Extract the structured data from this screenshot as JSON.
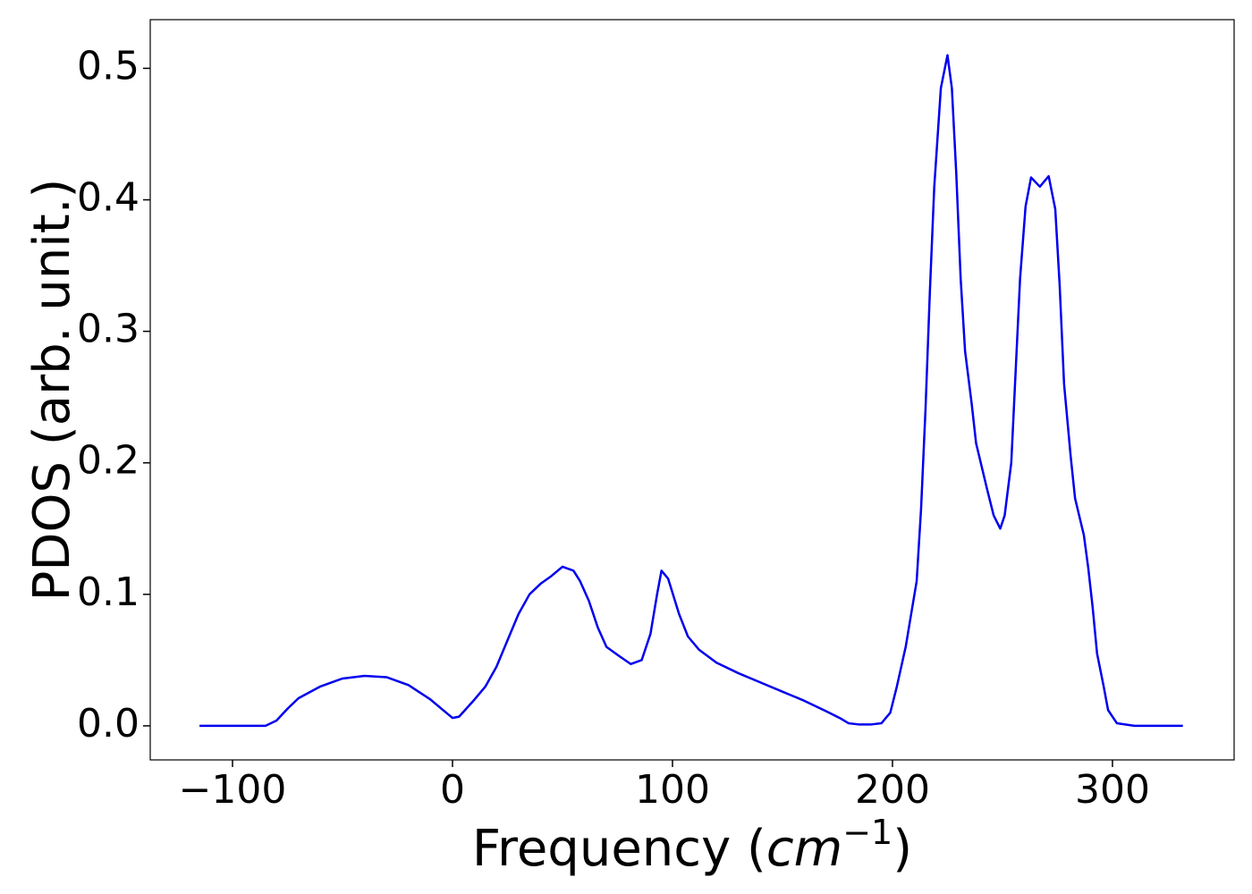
{
  "chart_data": {
    "type": "line",
    "y_label": "PDOS (arb. unit.)",
    "x_label_parts": [
      "Frequency (",
      "cm",
      "−1",
      ")"
    ],
    "x": [
      -115,
      -100,
      -85,
      -80,
      -75,
      -70,
      -60,
      -50,
      -40,
      -30,
      -20,
      -10,
      -5,
      0,
      3,
      10,
      15,
      20,
      25,
      30,
      35,
      40,
      45,
      50,
      55,
      58,
      62,
      66,
      70,
      75,
      81,
      86,
      90,
      93,
      95,
      98,
      103,
      107,
      112,
      120,
      130,
      140,
      150,
      160,
      170,
      176,
      180,
      185,
      190,
      195,
      199,
      202,
      206,
      208,
      211,
      213,
      215,
      217,
      219,
      222,
      225,
      227,
      229,
      231,
      233,
      236,
      238,
      243,
      246,
      249,
      251,
      254,
      256,
      258,
      260.5,
      263,
      267,
      271,
      274,
      276,
      278,
      281,
      283,
      287,
      289,
      291,
      293,
      296,
      298,
      302,
      310,
      332
    ],
    "series": [
      {
        "name": "PDOS",
        "color": "#0000ee",
        "values": [
          0,
          0,
          0,
          0.004,
          0.013,
          0.021,
          0.03,
          0.036,
          0.038,
          0.037,
          0.031,
          0.02,
          0.013,
          0.006,
          0.007,
          0.02,
          0.03,
          0.045,
          0.065,
          0.085,
          0.1,
          0.108,
          0.114,
          0.121,
          0.118,
          0.11,
          0.095,
          0.075,
          0.06,
          0.054,
          0.047,
          0.05,
          0.07,
          0.1,
          0.118,
          0.112,
          0.085,
          0.068,
          0.058,
          0.048,
          0.04,
          0.033,
          0.026,
          0.019,
          0.011,
          0.006,
          0.002,
          0.001,
          0.001,
          0.002,
          0.01,
          0.03,
          0.06,
          0.08,
          0.11,
          0.165,
          0.24,
          0.33,
          0.41,
          0.485,
          0.51,
          0.485,
          0.42,
          0.34,
          0.285,
          0.245,
          0.215,
          0.18,
          0.16,
          0.15,
          0.16,
          0.2,
          0.27,
          0.34,
          0.395,
          0.417,
          0.41,
          0.418,
          0.393,
          0.335,
          0.26,
          0.205,
          0.173,
          0.145,
          0.12,
          0.09,
          0.055,
          0.03,
          0.012,
          0.002,
          0,
          0
        ]
      }
    ],
    "xlim": [
      -137.4,
      355.3
    ],
    "ylim": [
      -0.0259,
      0.537
    ],
    "xticks": [
      {
        "value": -100,
        "label": "−100"
      },
      0,
      100,
      200,
      300
    ],
    "yticks": [
      {
        "value": 0,
        "label": "0.0"
      },
      0.1,
      0.2,
      0.3,
      0.4,
      0.5
    ]
  }
}
